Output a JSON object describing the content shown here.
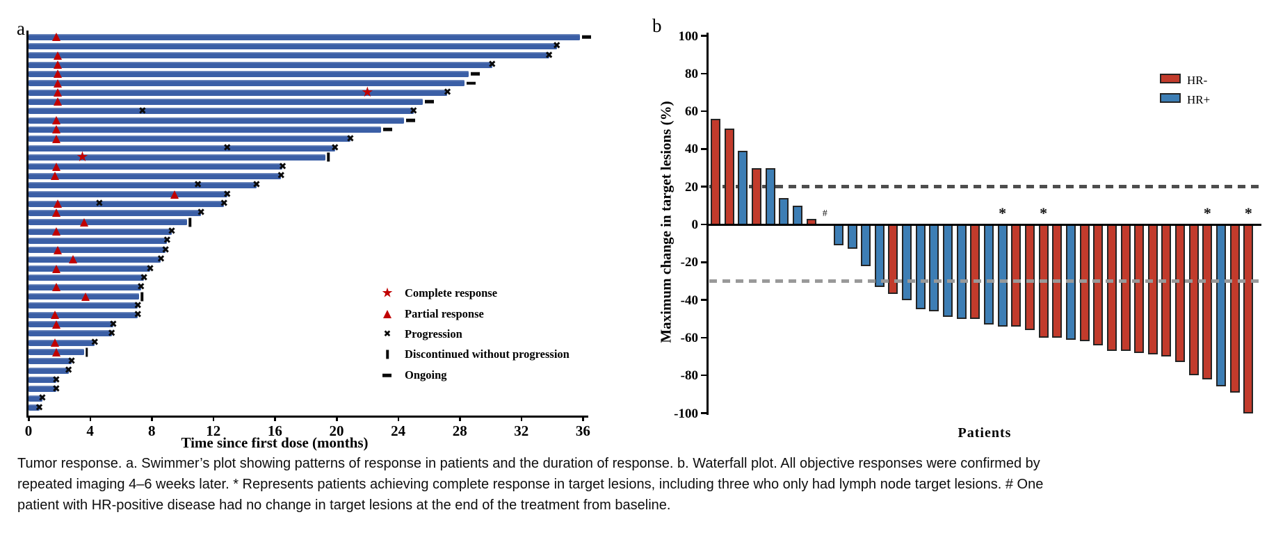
{
  "caption": "Tumor response. a. Swimmer’s plot showing patterns of response in patients and the duration of response. b. Waterfall plot. All objective responses were confirmed by repeated imaging 4–6 weeks later. * Represents patients achieving complete response in target lesions, including three who only had lymph node target lesions. # One patient with HR-positive disease had no change in target lesions at the end of the treatment from baseline.",
  "colors": {
    "swimmer_bar": "#3b5fa6",
    "response_marker_red": "#c00000",
    "hr_negative_red": "#c23b2c",
    "hr_positive_blue": "#3d7eb5",
    "threshold_20_gray": "#4d4d4d",
    "threshold_30_gray": "#999999",
    "black": "#0a0a0a"
  },
  "panel_a": {
    "label": "a",
    "xlabel": "Time since first dose (months)"
  },
  "panel_b": {
    "label": "b",
    "ylabel": "Maximum change in target lesions (%)",
    "xlabel": "Patients"
  },
  "chart_data": [
    {
      "type": "swimmer",
      "title": "a",
      "xlabel": "Time since first dose (months)",
      "xticks": [
        0,
        4,
        8,
        12,
        16,
        20,
        24,
        28,
        32,
        36
      ],
      "xlim": [
        0,
        36.4
      ],
      "grid": false,
      "legend_position": "center-right",
      "legend": [
        {
          "icon": "star-icon",
          "label": "Complete response",
          "color": "#c00000"
        },
        {
          "icon": "triangle-icon",
          "label": "Partial response",
          "color": "#c00000"
        },
        {
          "icon": "x-icon",
          "label": "Progression",
          "color": "#0a0a0a"
        },
        {
          "icon": "bar-icon",
          "label": "Discontinued without progression",
          "color": "#0a0a0a"
        },
        {
          "icon": "dash-icon",
          "label": "Ongoing",
          "color": "#0a0a0a"
        }
      ],
      "patients": [
        {
          "months": 35.8,
          "pr": 1.8,
          "end": "ongoing"
        },
        {
          "months": 34.3,
          "end": "x"
        },
        {
          "months": 33.8,
          "pr": 1.9,
          "end": "x"
        },
        {
          "months": 30.1,
          "pr": 1.9,
          "end": "x"
        },
        {
          "months": 28.6,
          "pr": 1.9,
          "end": "ongoing"
        },
        {
          "months": 28.3,
          "pr": 1.9,
          "end": "ongoing"
        },
        {
          "months": 27.2,
          "pr": 1.9,
          "cr": 22.0,
          "end": "x"
        },
        {
          "months": 25.6,
          "pr": 1.9,
          "end": "ongoing"
        },
        {
          "months": 25.0,
          "xm": [
            7.4
          ],
          "end": "x"
        },
        {
          "months": 24.4,
          "pr": 1.8,
          "end": "ongoing"
        },
        {
          "months": 22.9,
          "pr": 1.8,
          "end": "ongoing"
        },
        {
          "months": 20.9,
          "pr": 1.8,
          "end": "x"
        },
        {
          "months": 19.9,
          "xm": [
            12.9
          ],
          "end": "x"
        },
        {
          "months": 19.3,
          "cr": 3.5,
          "end": "disc"
        },
        {
          "months": 16.5,
          "pr": 1.8,
          "end": "x"
        },
        {
          "months": 16.4,
          "pr": 1.7,
          "end": "x"
        },
        {
          "months": 14.8,
          "xm": [
            11.0
          ],
          "end": "x"
        },
        {
          "months": 12.9,
          "pr": 9.5,
          "end": "x"
        },
        {
          "months": 12.7,
          "pr": 1.9,
          "xm": [
            4.6
          ],
          "end": "x"
        },
        {
          "months": 11.2,
          "pr": 1.8,
          "end": "x"
        },
        {
          "months": 10.3,
          "pr": 3.6,
          "end": "disc"
        },
        {
          "months": 9.3,
          "pr": 1.8,
          "end": "x"
        },
        {
          "months": 9.0,
          "end": "x"
        },
        {
          "months": 8.9,
          "pr": 1.9,
          "end": "x"
        },
        {
          "months": 8.6,
          "pr": 2.9,
          "end": "x"
        },
        {
          "months": 7.9,
          "pr": 1.8,
          "end": "x"
        },
        {
          "months": 7.5,
          "end": "x"
        },
        {
          "months": 7.3,
          "pr": 1.8,
          "end": "x"
        },
        {
          "months": 7.2,
          "pr": 3.7,
          "end": "disc"
        },
        {
          "months": 7.1,
          "end": "x"
        },
        {
          "months": 7.1,
          "pr": 1.7,
          "end": "x"
        },
        {
          "months": 5.5,
          "pr": 1.8,
          "end": "x"
        },
        {
          "months": 5.4,
          "end": "x"
        },
        {
          "months": 4.3,
          "pr": 1.7,
          "end": "x"
        },
        {
          "months": 3.6,
          "pr": 1.8,
          "end": "disc"
        },
        {
          "months": 2.8,
          "end": "x"
        },
        {
          "months": 2.6,
          "end": "x"
        },
        {
          "months": 1.8,
          "end": "x"
        },
        {
          "months": 1.8,
          "end": "x"
        },
        {
          "months": 0.9,
          "end": "x"
        },
        {
          "months": 0.7,
          "end": "x"
        }
      ]
    },
    {
      "type": "waterfall",
      "title": "b",
      "ylabel": "Maximum change in target lesions (%)",
      "xlabel": "Patients",
      "ylim": [
        -100,
        100
      ],
      "yticks": [
        100,
        80,
        60,
        40,
        20,
        0,
        -20,
        -40,
        -60,
        -80,
        -100
      ],
      "thresholds": [
        20,
        -30
      ],
      "grid": false,
      "legend_position": "upper-right",
      "legend": [
        {
          "label": "HR-",
          "color": "#c23b2c"
        },
        {
          "label": "HR+",
          "color": "#3d7eb5"
        }
      ],
      "patients": [
        {
          "value": 56,
          "group": "HR-"
        },
        {
          "value": 51,
          "group": "HR-"
        },
        {
          "value": 39,
          "group": "HR+"
        },
        {
          "value": 30,
          "group": "HR-"
        },
        {
          "value": 30,
          "group": "HR+"
        },
        {
          "value": 14,
          "group": "HR+"
        },
        {
          "value": 10,
          "group": "HR+"
        },
        {
          "value": 3,
          "group": "HR-"
        },
        {
          "value": 0,
          "group": "HR+",
          "mark": "#"
        },
        {
          "value": -11,
          "group": "HR+"
        },
        {
          "value": -13,
          "group": "HR+"
        },
        {
          "value": -22,
          "group": "HR+"
        },
        {
          "value": -33,
          "group": "HR+"
        },
        {
          "value": -37,
          "group": "HR-"
        },
        {
          "value": -40,
          "group": "HR+"
        },
        {
          "value": -45,
          "group": "HR+"
        },
        {
          "value": -46,
          "group": "HR+"
        },
        {
          "value": -49,
          "group": "HR+"
        },
        {
          "value": -50,
          "group": "HR+"
        },
        {
          "value": -50,
          "group": "HR-"
        },
        {
          "value": -53,
          "group": "HR+"
        },
        {
          "value": -54,
          "group": "HR+",
          "mark": "*"
        },
        {
          "value": -54,
          "group": "HR-"
        },
        {
          "value": -56,
          "group": "HR-"
        },
        {
          "value": -60,
          "group": "HR-",
          "mark": "*"
        },
        {
          "value": -60,
          "group": "HR-"
        },
        {
          "value": -61,
          "group": "HR+"
        },
        {
          "value": -62,
          "group": "HR-"
        },
        {
          "value": -64,
          "group": "HR-"
        },
        {
          "value": -67,
          "group": "HR-"
        },
        {
          "value": -67,
          "group": "HR-"
        },
        {
          "value": -68,
          "group": "HR-"
        },
        {
          "value": -69,
          "group": "HR-"
        },
        {
          "value": -70,
          "group": "HR-"
        },
        {
          "value": -73,
          "group": "HR-"
        },
        {
          "value": -80,
          "group": "HR-"
        },
        {
          "value": -82,
          "group": "HR-",
          "mark": "*"
        },
        {
          "value": -86,
          "group": "HR+"
        },
        {
          "value": -89,
          "group": "HR-"
        },
        {
          "value": -100,
          "group": "HR-",
          "mark": "*"
        }
      ]
    }
  ]
}
